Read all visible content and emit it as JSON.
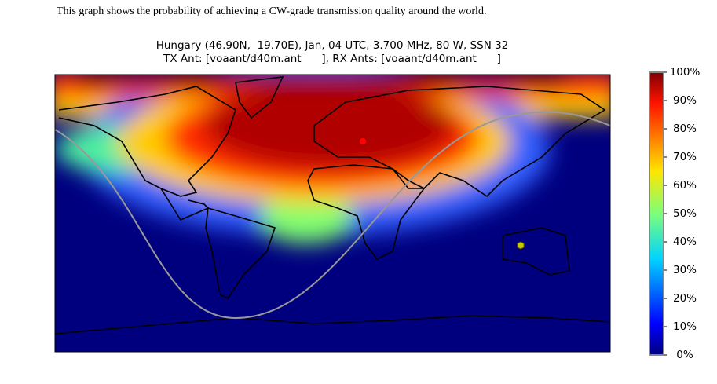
{
  "caption": "This graph shows the probability of achieving a CW-grade transmission quality around the world.",
  "chart_data": {
    "type": "heatmap-map",
    "title": [
      "Hungary (46.90N,  19.70E), Jan, 04 UTC, 3.700 MHz, 80 W, SSN 32",
      "TX Ant: [voaant/d40m.ant      ], RX Ants: [voaant/d40m.ant      ]"
    ],
    "colorbar": {
      "ylim": [
        0,
        100
      ],
      "yticks": [
        {
          "value": 0,
          "label": "0%"
        },
        {
          "value": 10,
          "label": "10%"
        },
        {
          "value": 20,
          "label": "20%"
        },
        {
          "value": 30,
          "label": "30%"
        },
        {
          "value": 40,
          "label": "40%"
        },
        {
          "value": 50,
          "label": "50%"
        },
        {
          "value": 60,
          "label": "60%"
        },
        {
          "value": 70,
          "label": "70%"
        },
        {
          "value": 80,
          "label": "80%"
        },
        {
          "value": 90,
          "label": "90%"
        },
        {
          "value": 100,
          "label": "100%"
        }
      ]
    }
  }
}
